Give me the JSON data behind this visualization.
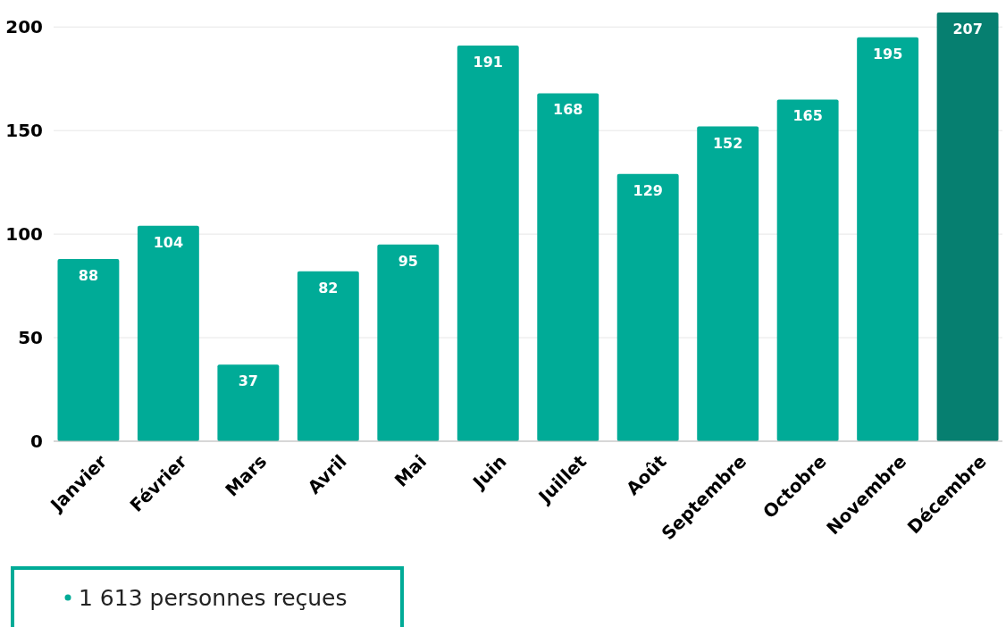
{
  "chart_data": {
    "type": "bar",
    "categories": [
      "Janvier",
      "Février",
      "Mars",
      "Avril",
      "Mai",
      "Juin",
      "Juillet",
      "Août",
      "Septembre",
      "Octobre",
      "Novembre",
      "Décembre"
    ],
    "values": [
      88,
      104,
      37,
      82,
      95,
      191,
      168,
      129,
      152,
      165,
      195,
      207
    ],
    "colors": [
      "#00ab97",
      "#00ab97",
      "#00ab97",
      "#00ab97",
      "#00ab97",
      "#00ab97",
      "#00ab97",
      "#00ab97",
      "#00ab97",
      "#00ab97",
      "#00ab97",
      "#067f70"
    ],
    "ylim": [
      0,
      207
    ],
    "yticks": [
      0,
      50,
      100,
      150,
      200
    ],
    "grid": "y",
    "data_labels": true,
    "annotations": [
      "1 613 personnes reçues"
    ]
  }
}
